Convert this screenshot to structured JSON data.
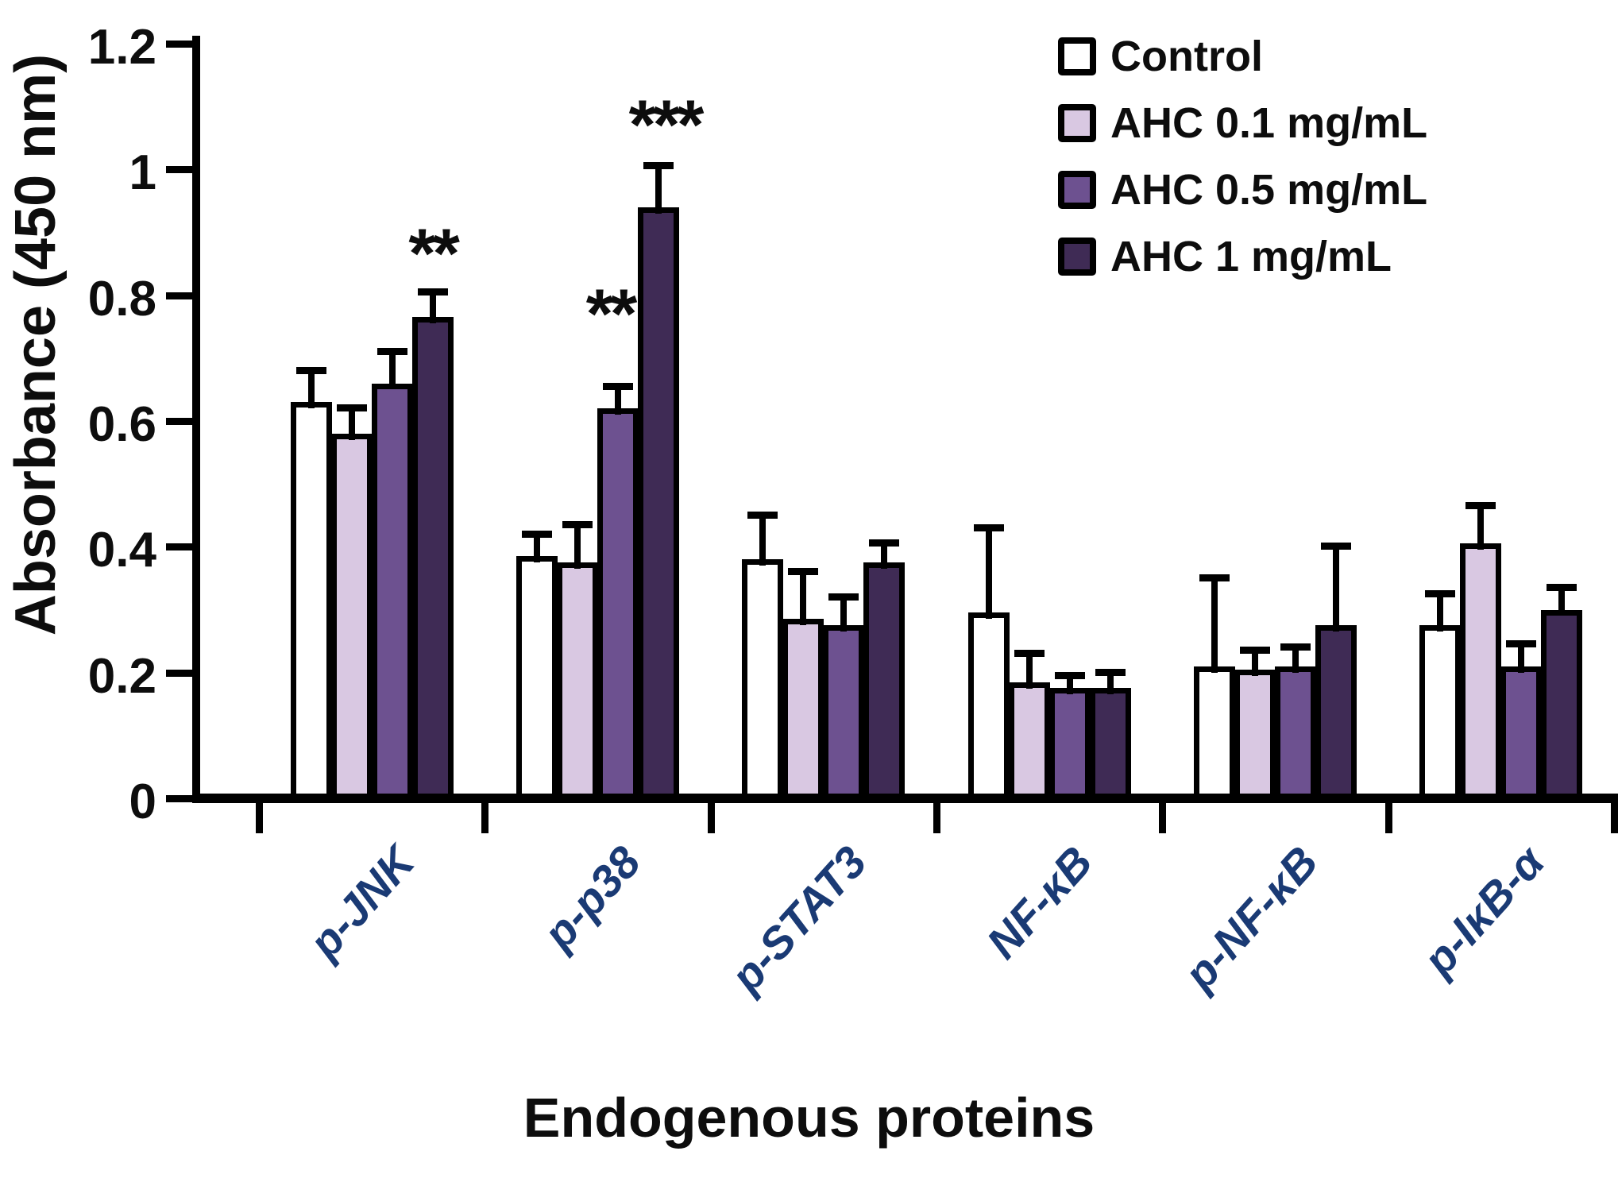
{
  "figure": {
    "y_axis_title": "Absorbance (450 nm)",
    "x_axis_title": "Endogenous proteins"
  },
  "colors": {
    "axis": "#000000",
    "bar_border": "#000000",
    "category_label_color": "#1a3a74",
    "significance_color": "#0d0d0d",
    "series_fills": [
      "#ffffff",
      "#d9c8e2",
      "#6d5190",
      "#3f2b55"
    ]
  },
  "chart_data": {
    "type": "bar",
    "title": "",
    "xlabel": "Endogenous proteins",
    "ylabel": "Absorbance (450 nm)",
    "ylim": [
      0,
      1.2
    ],
    "ytick_values": [
      0,
      0.2,
      0.4,
      0.6,
      0.8,
      1,
      1.2
    ],
    "ytick_labels": [
      "0",
      "0.2",
      "0.4",
      "0.6",
      "0.8",
      "1",
      "1.2"
    ],
    "grid": false,
    "legend_position": "top-right",
    "error_bars": "upper",
    "categories": [
      "p-JNK",
      "p-p38",
      "p-STAT3",
      "NF-κB",
      "p-NF-κB",
      "p-IκB-α"
    ],
    "series": [
      {
        "name": "Control",
        "color": "#ffffff",
        "values": [
          0.63,
          0.385,
          0.38,
          0.295,
          0.21,
          0.275
        ],
        "errors_plus": [
          0.055,
          0.04,
          0.075,
          0.14,
          0.145,
          0.055
        ]
      },
      {
        "name": "AHC 0.1 mg/mL",
        "color": "#d9c8e2",
        "values": [
          0.58,
          0.375,
          0.285,
          0.185,
          0.205,
          0.405
        ],
        "errors_plus": [
          0.045,
          0.065,
          0.08,
          0.05,
          0.035,
          0.065
        ]
      },
      {
        "name": "AHC 0.5 mg/mL",
        "color": "#6d5190",
        "values": [
          0.66,
          0.62,
          0.275,
          0.175,
          0.21,
          0.21
        ],
        "errors_plus": [
          0.055,
          0.04,
          0.05,
          0.025,
          0.035,
          0.04
        ]
      },
      {
        "name": "AHC 1 mg/mL",
        "color": "#3f2b55",
        "values": [
          0.765,
          0.94,
          0.375,
          0.175,
          0.275,
          0.3
        ],
        "errors_plus": [
          0.045,
          0.07,
          0.035,
          0.03,
          0.13,
          0.04
        ]
      }
    ],
    "annotations": [
      {
        "text": "**",
        "category_index": 0,
        "series_index": 3,
        "y": 0.875,
        "dx": 0
      },
      {
        "text": "**",
        "category_index": 1,
        "series_index": 2,
        "y": 0.78,
        "dx": -10
      },
      {
        "text": "***",
        "category_index": 1,
        "series_index": 3,
        "y": 1.08,
        "dx": 8
      }
    ]
  }
}
